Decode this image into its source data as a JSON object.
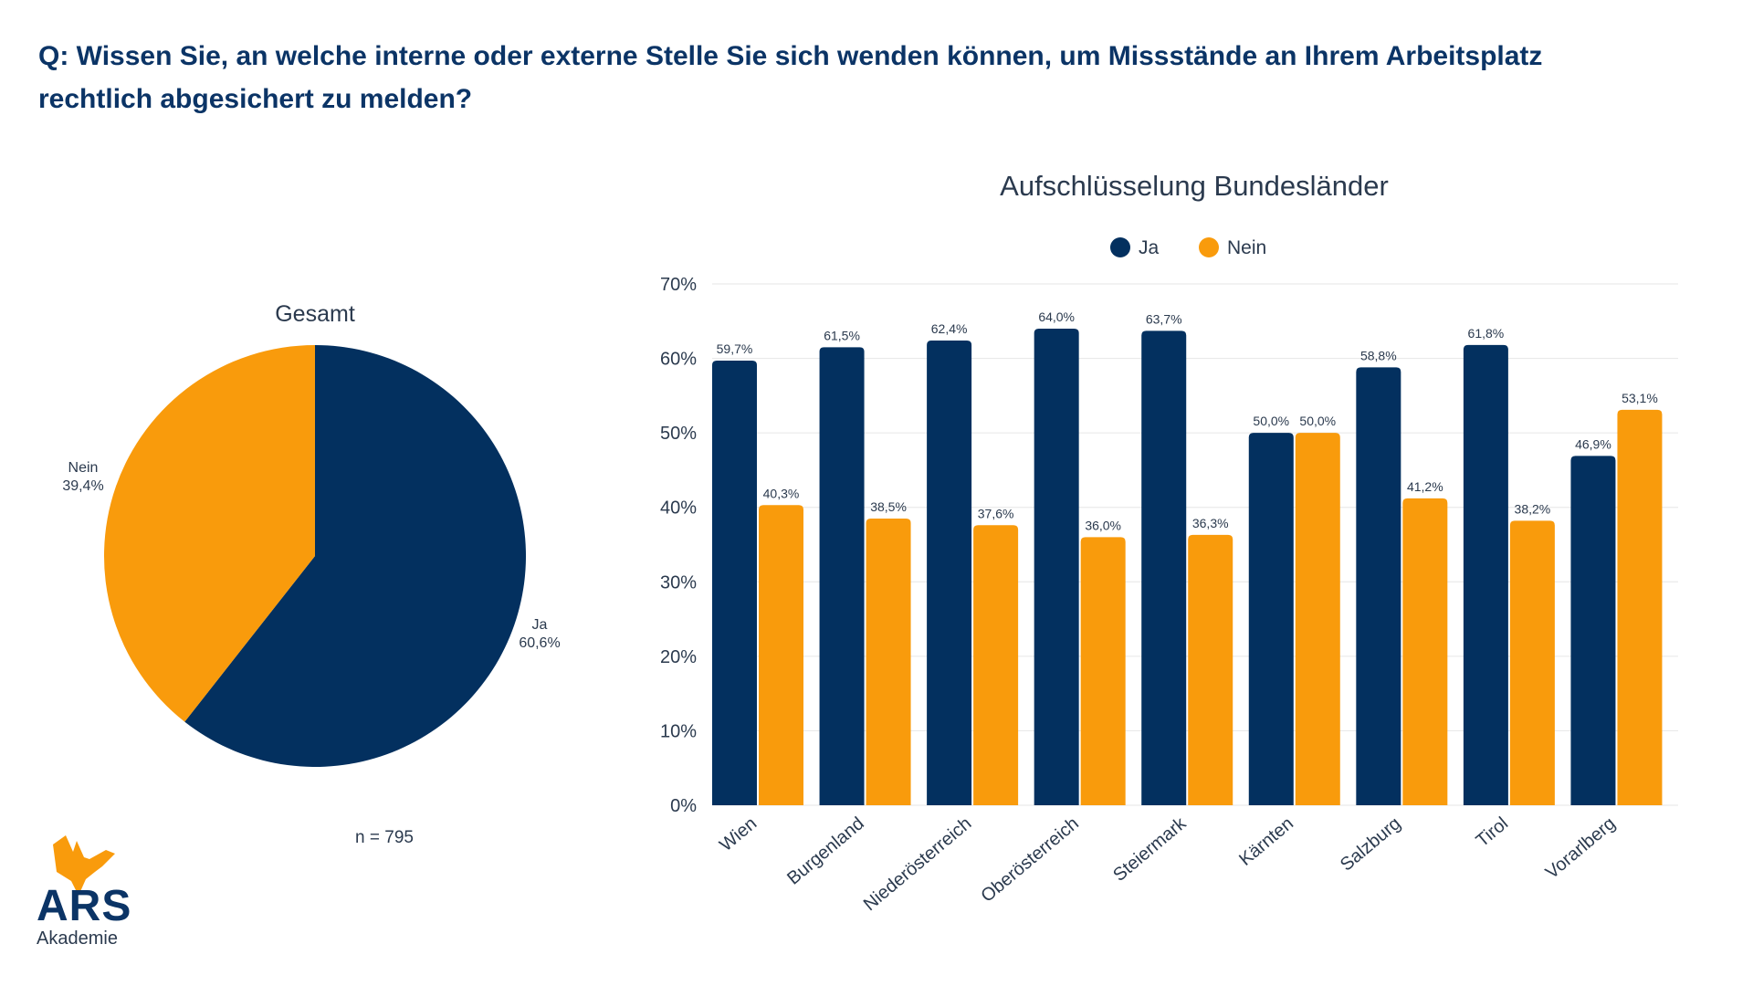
{
  "question": "Q: Wissen Sie, an welche interne oder externe Stelle Sie sich wenden können, um Missstände an Ihrem Arbeitsplatz rechtlich abgesichert zu melden?",
  "logo": {
    "name": "ARS",
    "subtitle": "Akademie"
  },
  "colors": {
    "ja": "#03305f",
    "nein": "#f99b0c",
    "text": "#2b3a4e",
    "title": "#0b3466"
  },
  "chart_data": [
    {
      "type": "pie",
      "title": "Gesamt",
      "slices": [
        {
          "label": "Ja",
          "value": 60.6,
          "value_label": "60,6%"
        },
        {
          "label": "Nein",
          "value": 39.4,
          "value_label": "39,4%"
        }
      ],
      "note": "n = 795"
    },
    {
      "type": "bar",
      "title": "Aufschlüsselung Bundesländer",
      "legend_position": "top",
      "categories": [
        "Wien",
        "Burgenland",
        "Niederösterreich",
        "Oberösterreich",
        "Steiermark",
        "Kärnten",
        "Salzburg",
        "Tirol",
        "Vorarlberg"
      ],
      "series": [
        {
          "name": "Ja",
          "values": [
            59.7,
            61.5,
            62.4,
            64.0,
            63.7,
            50.0,
            58.8,
            61.8,
            46.9
          ],
          "labels": [
            "59,7%",
            "61,5%",
            "62,4%",
            "64,0%",
            "63,7%",
            "50,0%",
            "58,8%",
            "61,8%",
            "46,9%"
          ]
        },
        {
          "name": "Nein",
          "values": [
            40.3,
            38.5,
            37.6,
            36.0,
            36.3,
            50.0,
            41.2,
            38.2,
            53.1
          ],
          "labels": [
            "40,3%",
            "38,5%",
            "37,6%",
            "36,0%",
            "36,3%",
            "50,0%",
            "41,2%",
            "38,2%",
            "53,1%"
          ]
        }
      ],
      "ylim": [
        0,
        70
      ],
      "yticks": [
        "0%",
        "10%",
        "20%",
        "30%",
        "40%",
        "50%",
        "60%",
        "70%"
      ],
      "grid": true
    }
  ]
}
